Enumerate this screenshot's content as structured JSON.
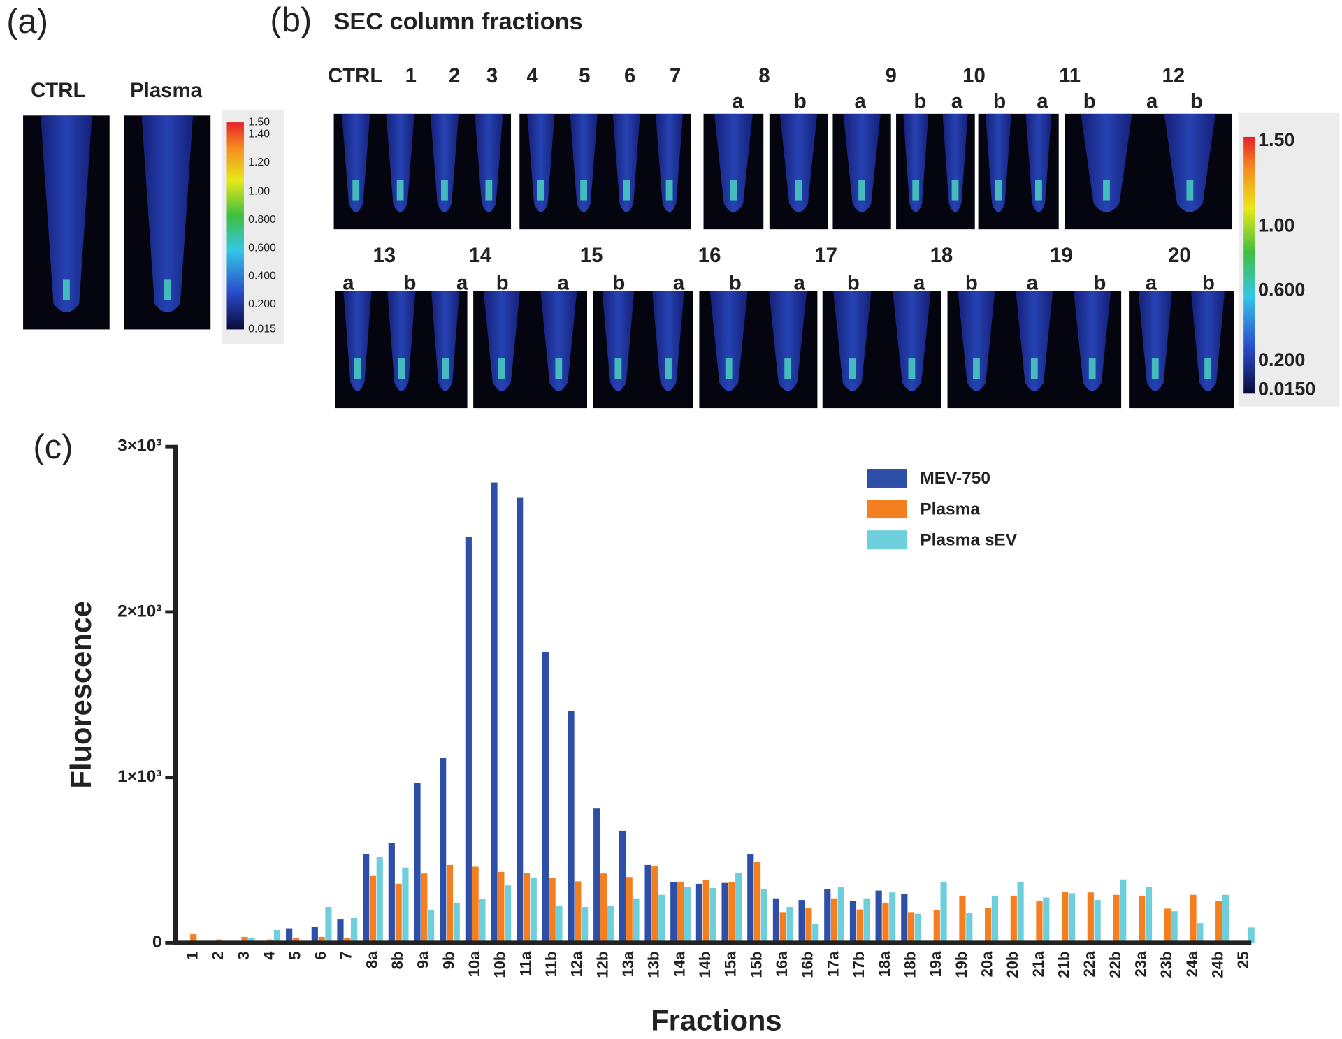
{
  "panel_a": {
    "label": "(a)",
    "samples": [
      "CTRL",
      "Plasma"
    ],
    "colorbar_labels": [
      "1.50",
      "1.40",
      "1.20",
      "1.00",
      "0.800",
      "0.600",
      "0.400",
      "0.200",
      "0.015"
    ]
  },
  "panel_b": {
    "label": "(b)",
    "title": "SEC column fractions",
    "row1_numbers": [
      "CTRL",
      "1",
      "2",
      "3",
      "4",
      "5",
      "6",
      "7",
      "8",
      "9",
      "10",
      "11",
      "12"
    ],
    "row1_letters": [
      "a",
      "b",
      "a",
      "b",
      "a",
      "b",
      "a",
      "b",
      "a",
      "b"
    ],
    "row2_numbers": [
      "13",
      "14",
      "15",
      "16",
      "17",
      "18",
      "19",
      "20"
    ],
    "row2_letters": [
      "a",
      "b",
      "a",
      "b",
      "a",
      "b",
      "a",
      "b",
      "a",
      "b",
      "a",
      "b",
      "a",
      "b",
      "a",
      "b"
    ],
    "colorbar_labels": [
      "1.50",
      "1.00",
      "0.600",
      "0.200",
      "0.0150"
    ]
  },
  "chart_data": {
    "type": "bar",
    "panel_label": "(c)",
    "x_label": "Fractions",
    "y_label": "Fluorescence",
    "categories": [
      "1",
      "2",
      "3",
      "4",
      "5",
      "6",
      "7",
      "8a",
      "8b",
      "9a",
      "9b",
      "10a",
      "10b",
      "11a",
      "11b",
      "12a",
      "12b",
      "13a",
      "13b",
      "14a",
      "14b",
      "15a",
      "15b",
      "16a",
      "16b",
      "17a",
      "17b",
      "18a",
      "18b",
      "19a",
      "19b",
      "20a",
      "20b",
      "21a",
      "21b",
      "22a",
      "22b",
      "23a",
      "23b",
      "24a",
      "24b",
      "25"
    ],
    "series": [
      {
        "name": "MEV-750",
        "color": "#2e4fa8",
        "values": [
          0,
          0,
          0,
          0,
          88,
          98,
          145,
          538,
          605,
          967,
          1117,
          2452,
          2783,
          2690,
          1759,
          1402,
          812,
          678,
          471,
          367,
          357,
          362,
          538,
          269,
          259,
          326,
          253,
          316,
          295,
          0,
          0,
          0,
          0,
          0,
          0,
          0,
          0,
          0,
          0,
          0,
          0,
          0
        ]
      },
      {
        "name": "Plasma",
        "color": "#f47f20",
        "values": [
          52,
          20,
          36,
          20,
          30,
          36,
          30,
          404,
          357,
          419,
          471,
          460,
          429,
          424,
          393,
          372,
          419,
          398,
          466,
          367,
          378,
          367,
          491,
          186,
          212,
          269,
          202,
          243,
          186,
          197,
          285,
          212,
          285,
          253,
          310,
          305,
          290,
          285,
          207,
          290,
          253,
          0
        ]
      },
      {
        "name": "Plasma sEV",
        "color": "#6ecfdc",
        "values": [
          0,
          0,
          30,
          78,
          0,
          217,
          150,
          517,
          455,
          197,
          243,
          264,
          347,
          393,
          222,
          217,
          222,
          269,
          290,
          336,
          331,
          424,
          326,
          217,
          114,
          336,
          269,
          305,
          176,
          367,
          181,
          285,
          367,
          274,
          300,
          259,
          383,
          336,
          191,
          119,
          290,
          93
        ]
      }
    ],
    "ylim": [
      0,
      3000
    ],
    "yticks": [
      0,
      {
        "value": 1000,
        "label": "1×10³"
      },
      {
        "value": 2000,
        "label": "2×10³"
      },
      {
        "value": 3000,
        "label": "3×10³"
      }
    ]
  }
}
